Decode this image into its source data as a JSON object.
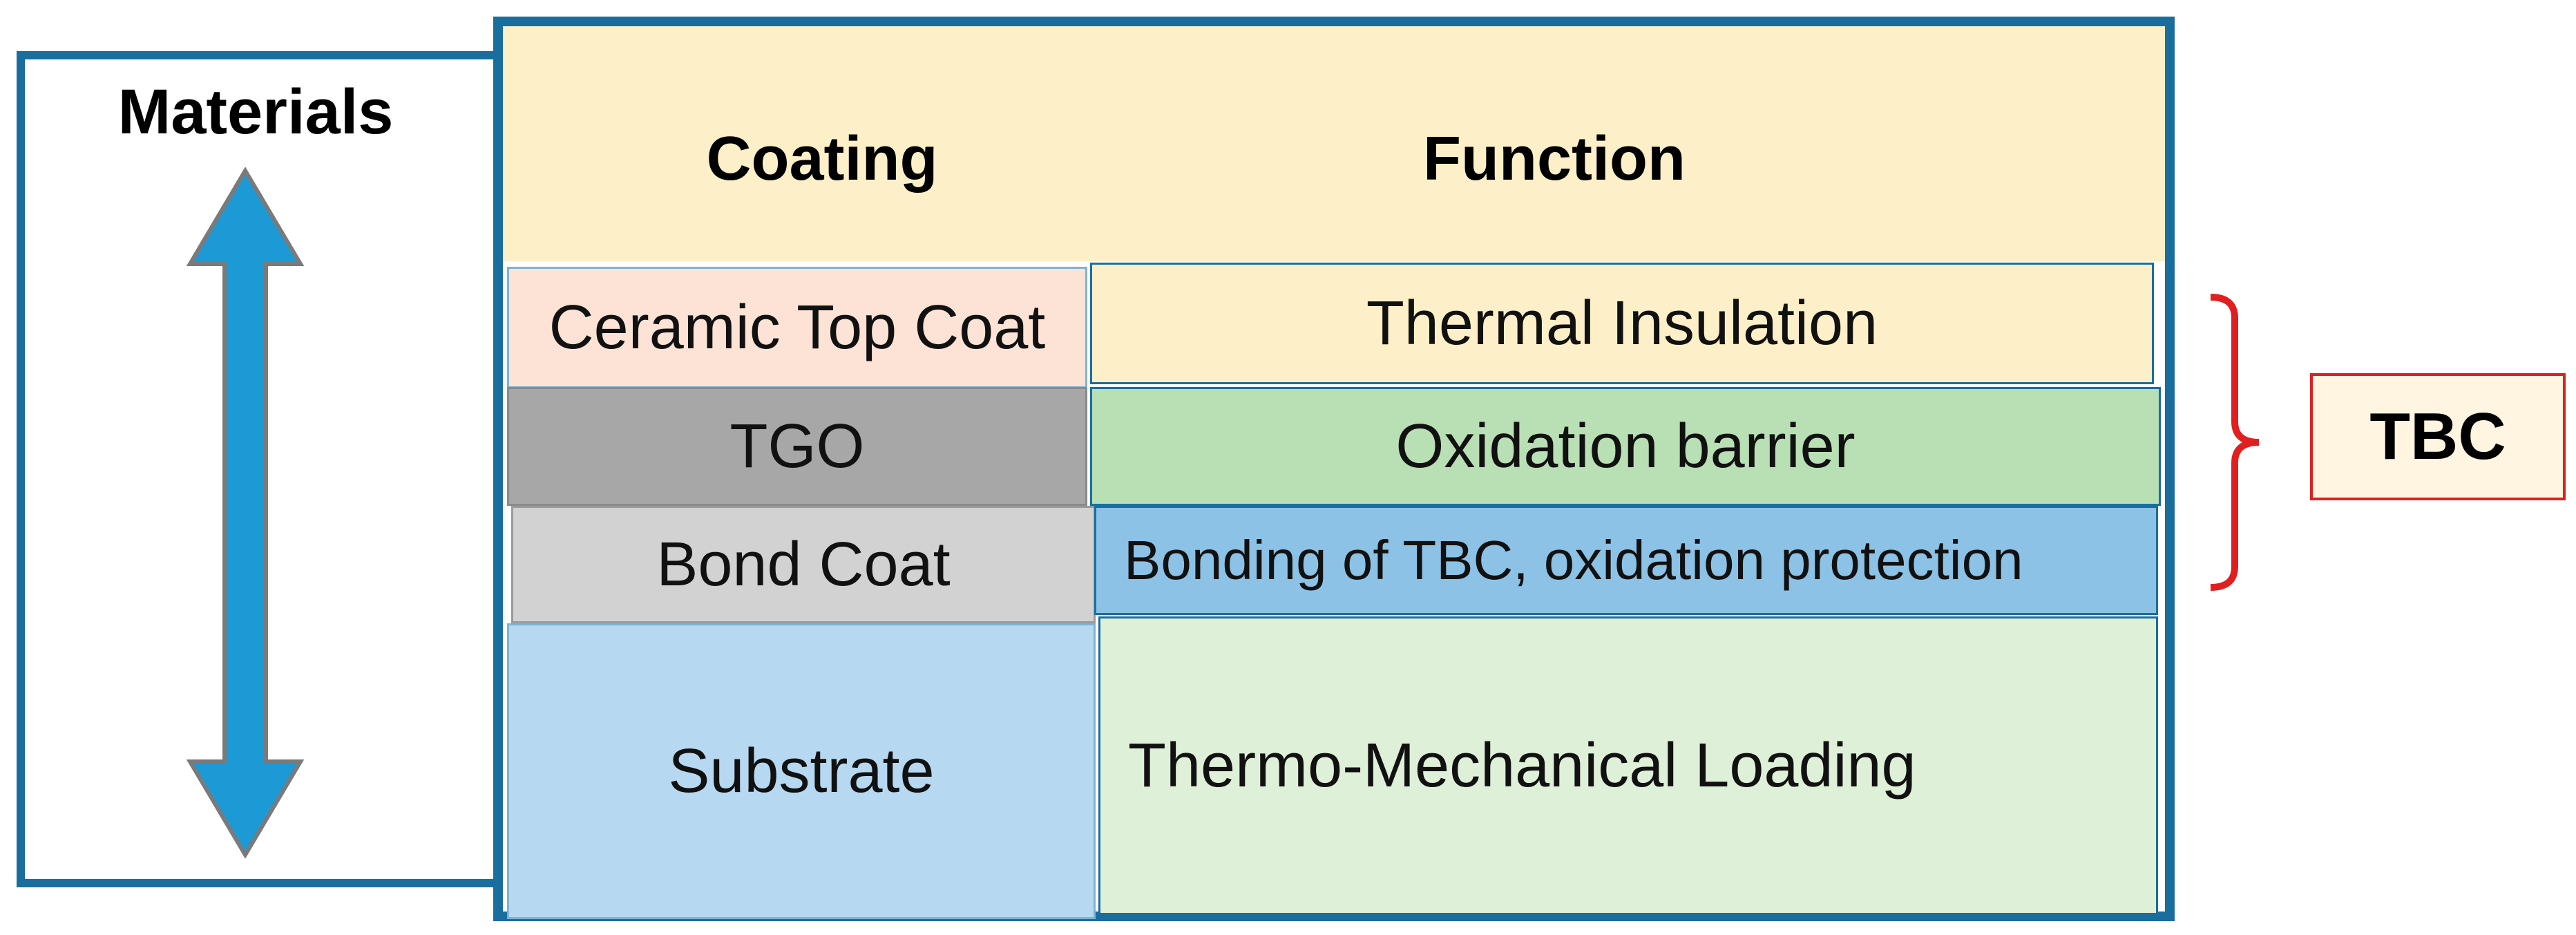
{
  "materials": {
    "label": "Materials"
  },
  "table": {
    "headers": {
      "coating": "Coating",
      "function": "Function"
    },
    "rows": [
      {
        "coating": "Ceramic Top Coat",
        "function": "Thermal Insulation"
      },
      {
        "coating": "TGO",
        "function": "Oxidation barrier"
      },
      {
        "coating": "Bond Coat",
        "function": "Bonding of TBC, oxidation protection"
      },
      {
        "coating": "Substrate",
        "function": "Thermo-Mechanical Loading"
      }
    ]
  },
  "tbc": {
    "label": "TBC"
  },
  "colors": {
    "frame": "#1a6e9e",
    "header_fill": "#fdf0c8",
    "ceramic_fill": "#fce3d6",
    "tgo_fill": "#a7a7a7",
    "oxidation_fill": "#b9e0b4",
    "bond_fill": "#d2d2d2",
    "bonding_fill": "#8cc2e6",
    "substrate_fill": "#b6d8f0",
    "loading_fill": "#dff0d9",
    "arrow_fill": "#1c9ad6",
    "bracket": "#e02020"
  }
}
